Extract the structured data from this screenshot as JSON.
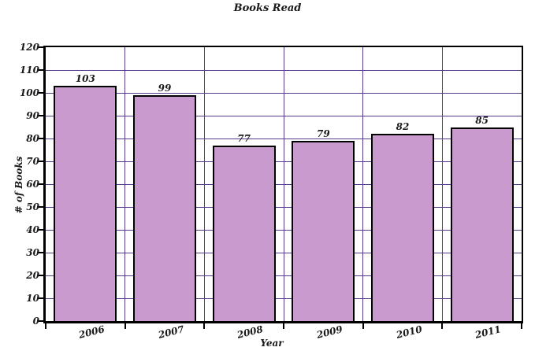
{
  "chart_data": {
    "type": "bar",
    "title": "Books Read",
    "xlabel": "Year",
    "ylabel": "# of Books",
    "categories": [
      "2006",
      "2007",
      "2008",
      "2009",
      "2010",
      "2011"
    ],
    "values": [
      103,
      99,
      77,
      79,
      82,
      85
    ],
    "bar_value_labels": [
      "103",
      "99",
      "77",
      "79",
      "82",
      "85"
    ],
    "ylim": [
      0,
      120
    ],
    "ytick_step": 10,
    "ytick_labels": [
      "0",
      "10",
      "20",
      "30",
      "40",
      "50",
      "60",
      "70",
      "80",
      "90",
      "100",
      "110",
      "120"
    ],
    "grid": true,
    "legend_position": "none",
    "colors": {
      "bar_fill": "#c99ace",
      "bar_border": "#000000",
      "gridline": "#563a8e",
      "axis": "#000000",
      "text": "#1a1a1a",
      "background": "#ffffff"
    }
  }
}
